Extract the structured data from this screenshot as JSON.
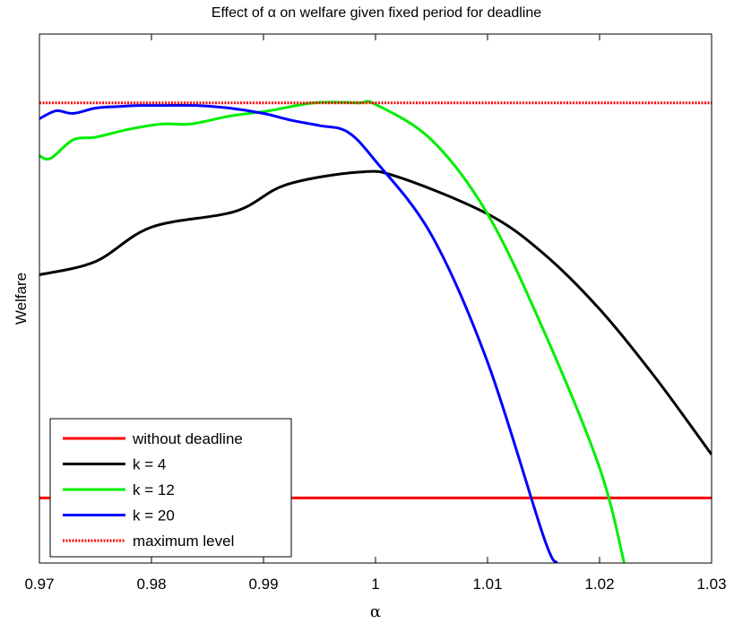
{
  "chart_data": {
    "type": "line",
    "title": "Effect of α on welfare given fixed period for deadline",
    "xlabel": "α",
    "ylabel": "Welfare",
    "xlim": [
      0.97,
      1.03
    ],
    "ylim": [
      0,
      100
    ],
    "xticks": [
      0.97,
      0.98,
      0.99,
      1,
      1.01,
      1.02,
      1.03
    ],
    "xtick_labels": [
      "0.97",
      "0.98",
      "0.99",
      "1",
      "1.01",
      "1.02",
      "1.03"
    ],
    "yticks_visible": false,
    "grid": false,
    "legend_position": "bottom-left",
    "series": [
      {
        "name": "without deadline",
        "color": "#ff0000",
        "style": "solid",
        "x": [
          0.97,
          1.03
        ],
        "y": [
          12.3,
          12.3
        ]
      },
      {
        "name": "k = 4",
        "color": "#000000",
        "style": "solid",
        "x": [
          0.97,
          0.975,
          0.98,
          0.9875,
          0.992,
          0.9985,
          1.002,
          1.01,
          1.015,
          1.02,
          1.025,
          1.03
        ],
        "y": [
          54.5,
          57.0,
          63.5,
          66.5,
          71.5,
          73.9,
          73.0,
          66.0,
          58.5,
          48.0,
          35.0,
          20.5
        ]
      },
      {
        "name": "k = 12",
        "color": "#00ee00",
        "style": "solid",
        "x": [
          0.97,
          0.971,
          0.973,
          0.975,
          0.978,
          0.981,
          0.9835,
          0.987,
          0.9905,
          0.9945,
          0.9985,
          1.0,
          1.005,
          1.01,
          1.015,
          1.02,
          1.0222
        ],
        "y": [
          77.0,
          76.5,
          80.0,
          80.5,
          82.0,
          83.0,
          83.0,
          84.5,
          85.5,
          87.0,
          87.0,
          86.7,
          80.0,
          66.0,
          44.0,
          18.0,
          0.0
        ]
      },
      {
        "name": "k = 20",
        "color": "#0000ff",
        "style": "solid",
        "x": [
          0.97,
          0.9715,
          0.973,
          0.975,
          0.977,
          0.979,
          0.981,
          0.984,
          0.987,
          0.99,
          0.9925,
          0.995,
          0.9975,
          1.0,
          1.005,
          1.01,
          1.015,
          1.0162
        ],
        "y": [
          84.0,
          85.5,
          85.0,
          86.0,
          86.3,
          86.5,
          86.5,
          86.5,
          86.0,
          85.0,
          83.7,
          82.7,
          81.5,
          76.0,
          62.0,
          38.0,
          5.0,
          0.0
        ]
      },
      {
        "name": "maximum level",
        "color": "#ff0000",
        "style": "dotted",
        "x": [
          0.97,
          1.03
        ],
        "y": [
          87.0,
          87.0
        ]
      }
    ]
  }
}
